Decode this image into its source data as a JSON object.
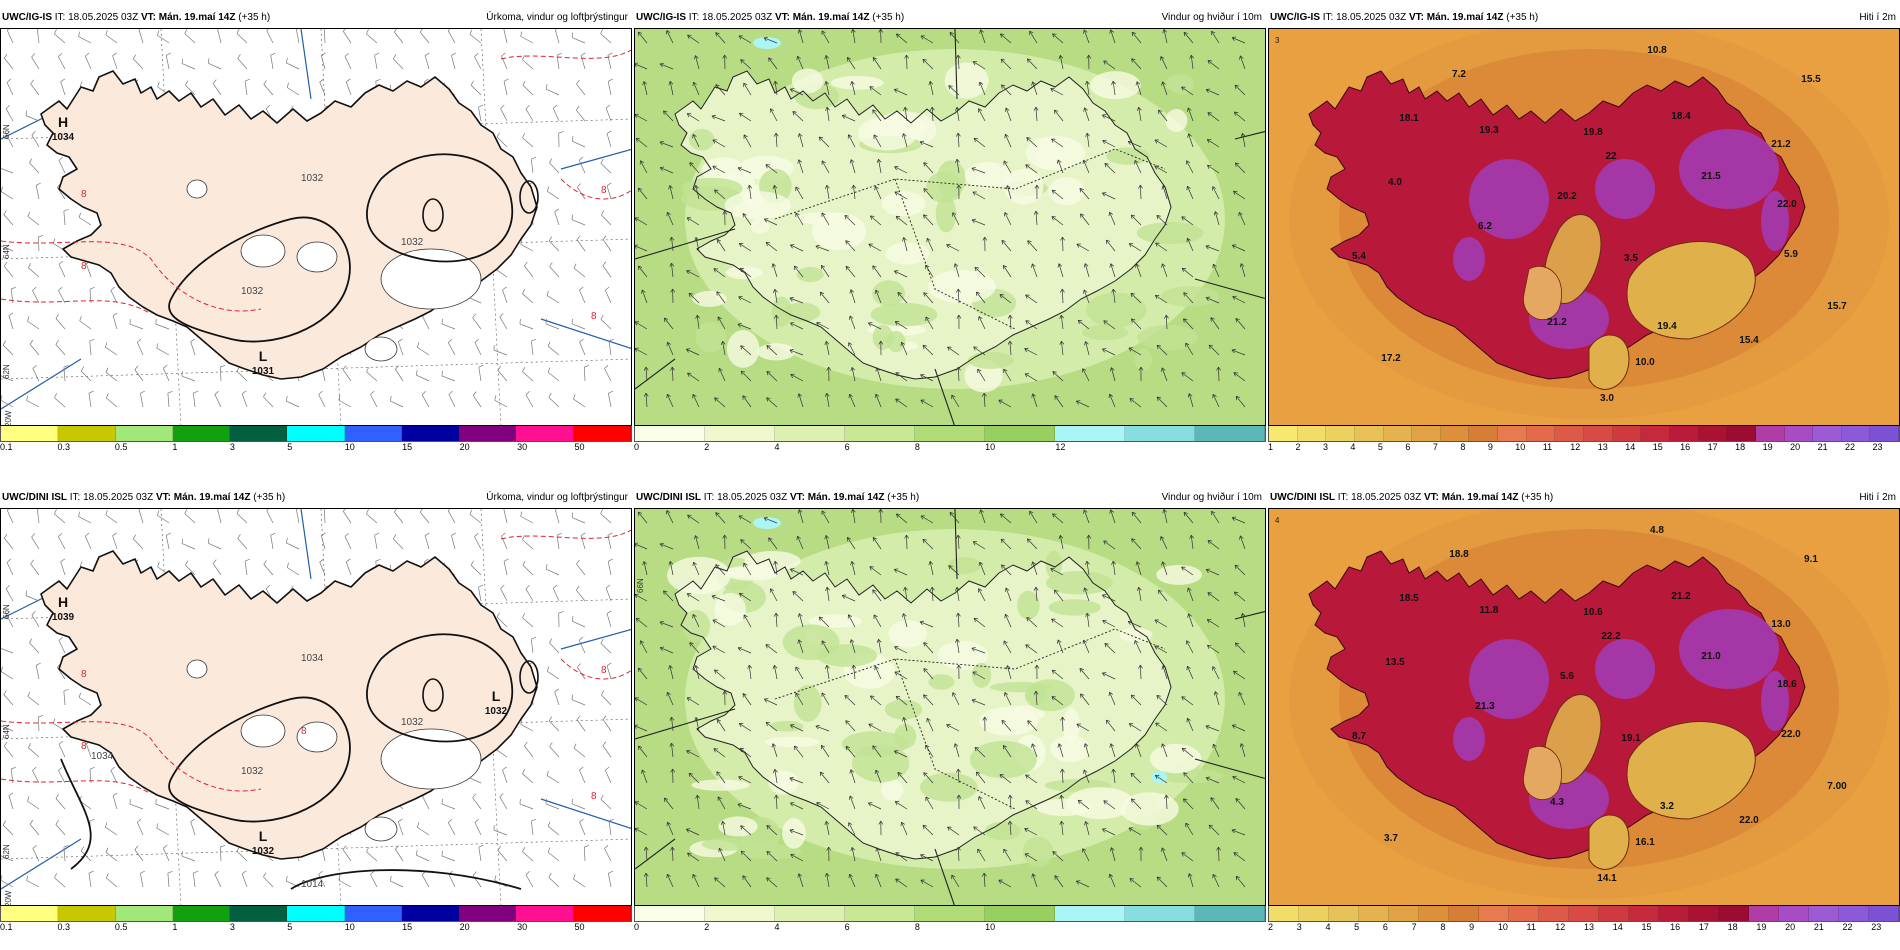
{
  "rows": [
    {
      "model": "UWC/IG-IS",
      "init": "IT: 18.05.2025 03Z",
      "valid": "VT: Mán. 19.maí 14Z",
      "lead": "(+35 h)",
      "panels": [
        {
          "kind": "precip",
          "title": "Úrkoma, vindur og loftþrýstingur",
          "colorbar": {
            "colors": [
              "#ffff80",
              "#c8c800",
              "#a0e878",
              "#10a010",
              "#006040",
              "#00ffff",
              "#3060ff",
              "#0000a0",
              "#800080",
              "#ff1090",
              "#ff0000"
            ],
            "ticks": [
              "0.1",
              "0.3",
              "0.5",
              "1",
              "3",
              "5",
              "10",
              "15",
              "20",
              "30",
              "50"
            ]
          },
          "pressure_labels": [
            {
              "text": "H",
              "sub": "1034"
            },
            {
              "text": "L",
              "sub": "1031"
            }
          ],
          "isobar_labels": [
            "1032",
            "1032",
            "1032"
          ],
          "precip_labels": [
            "8",
            "8",
            "8",
            "8"
          ],
          "grid_labels": [
            "66N",
            "64N",
            "62N",
            "20W"
          ]
        },
        {
          "kind": "wind",
          "title": "Vindur og hviður í 10m",
          "colorbar": {
            "colors": [
              "#fafde8",
              "#eef8cc",
              "#dcf0b0",
              "#c8e894",
              "#b0dc78",
              "#98d060",
              "#aaf5f5",
              "#88dde0",
              "#5ab8b8"
            ],
            "ticks": [
              "0",
              "2",
              "4",
              "6",
              "8",
              "10",
              "12"
            ]
          }
        },
        {
          "kind": "temp",
          "title": "Hiti í 2m",
          "colorbar": {
            "colors": [
              "#f7e870",
              "#f2dc6a",
              "#ecd060",
              "#e8c158",
              "#e4b24e",
              "#e0a244",
              "#dc903c",
              "#d67e36",
              "#e87a50",
              "#e46a4c",
              "#de5a48",
              "#d84a44",
              "#cf3a40",
              "#c42a3c",
              "#b81c38",
              "#aa1234",
              "#9a0c32",
              "#b03ca8",
              "#a84cc6",
              "#9c5ad4",
              "#8c5ad8",
              "#7c52d4"
            ],
            "ticks": [
              "1",
              "2",
              "3",
              "4",
              "5",
              "6",
              "7",
              "8",
              "9",
              "10",
              "11",
              "12",
              "13",
              "14",
              "15",
              "16",
              "17",
              "18",
              "19",
              "20",
              "21",
              "22",
              "23"
            ]
          },
          "temps": [
            "10.8",
            "7.2",
            "15.5",
            "18.1",
            "19.3",
            "19.8",
            "18.4",
            "22",
            "21.2",
            "21.5",
            "4.0",
            "20.2",
            "22.0",
            "6.2",
            "5.4",
            "3.5",
            "5.9",
            "21.2",
            "19.4",
            "15.7",
            "15.4",
            "17.2",
            "10.0",
            "3.0"
          ]
        }
      ]
    },
    {
      "model": "UWC/DINI ISL",
      "init": "IT: 18.05.2025 03Z",
      "valid": "VT: Mán. 19.maí 14Z",
      "lead": "(+35 h)",
      "panels": [
        {
          "kind": "precip",
          "title": "Úrkoma, vindur og loftþrýstingur",
          "colorbar": {
            "colors": [
              "#ffff80",
              "#c8c800",
              "#a0e878",
              "#10a010",
              "#006040",
              "#00ffff",
              "#3060ff",
              "#0000a0",
              "#800080",
              "#ff1090",
              "#ff0000"
            ],
            "ticks": [
              "0.1",
              "0.3",
              "0.5",
              "1",
              "3",
              "5",
              "10",
              "15",
              "20",
              "30",
              "50"
            ]
          },
          "pressure_labels": [
            {
              "text": "H",
              "sub": "1039"
            },
            {
              "text": "L",
              "sub": "1032"
            },
            {
              "text": "L",
              "sub": "1032"
            }
          ],
          "isobar_labels": [
            "1034",
            "1032",
            "1032",
            "1034",
            "1014"
          ],
          "precip_labels": [
            "8",
            "8",
            "8",
            "8",
            "8"
          ],
          "grid_labels": [
            "66N",
            "64N",
            "62N",
            "20W"
          ]
        },
        {
          "kind": "wind",
          "title": "Vindur og hviður í 10m",
          "colorbar": {
            "colors": [
              "#fafde8",
              "#eef8cc",
              "#dcf0b0",
              "#c8e894",
              "#b0dc78",
              "#98d060",
              "#aaf5f5",
              "#88dde0",
              "#5ab8b8"
            ],
            "ticks": [
              "0",
              "2",
              "4",
              "6",
              "8",
              "10"
            ]
          }
        },
        {
          "kind": "temp",
          "title": "Hiti í 2m",
          "colorbar": {
            "colors": [
              "#f2dc6a",
              "#ecd060",
              "#e8c158",
              "#e4b24e",
              "#e0a244",
              "#dc903c",
              "#d67e36",
              "#e87a50",
              "#e46a4c",
              "#de5a48",
              "#d84a44",
              "#cf3a40",
              "#c42a3c",
              "#b81c38",
              "#aa1234",
              "#9a0c32",
              "#b03ca8",
              "#a84cc6",
              "#9c5ad4",
              "#8c5ad8",
              "#7c52d4"
            ],
            "ticks": [
              "2",
              "3",
              "4",
              "5",
              "6",
              "7",
              "8",
              "9",
              "10",
              "11",
              "12",
              "13",
              "14",
              "15",
              "16",
              "17",
              "18",
              "19",
              "20",
              "21",
              "22",
              "23"
            ]
          },
          "temps": [
            "4.8",
            "18.8",
            "9.1",
            "18.5",
            "11.8",
            "10.6",
            "21.2",
            "22.2",
            "13.0",
            "21.0",
            "13.5",
            "5.6",
            "18.6",
            "21.3",
            "8.7",
            "19.1",
            "22.0",
            "4.3",
            "3.2",
            "7.00",
            "22.0",
            "3.7",
            "16.1",
            "14.1"
          ]
        }
      ]
    }
  ]
}
